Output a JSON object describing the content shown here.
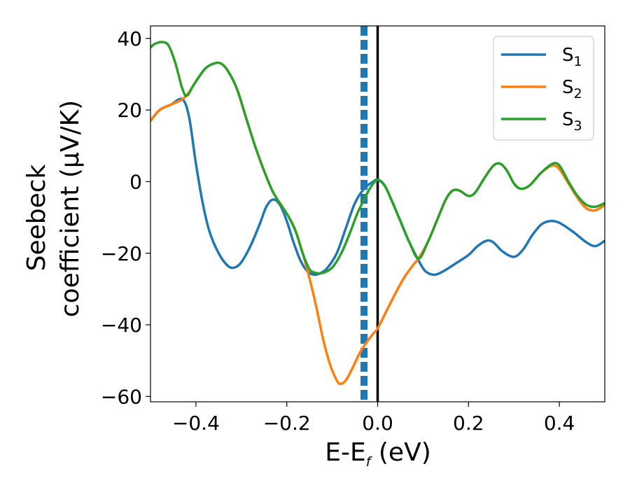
{
  "chart_data": {
    "type": "line",
    "xlabel": {
      "main": "E-E",
      "sub": "f",
      "unit": " (eV)"
    },
    "ylabel": {
      "line1": "Seebeck",
      "line2": "coefficient  (μV/K)"
    },
    "xlim": [
      -0.5,
      0.5
    ],
    "ylim": [
      -61.5,
      43.5
    ],
    "xticks": [
      -0.4,
      -0.2,
      0.0,
      0.2,
      0.4
    ],
    "xtick_labels": [
      "−0.4",
      "−0.2",
      "0.0",
      "0.2",
      "0.4"
    ],
    "yticks": [
      -60,
      -40,
      -20,
      0,
      20,
      40
    ],
    "ytick_labels": [
      "−60",
      "−40",
      "−20",
      "0",
      "20",
      "40"
    ],
    "grid": false,
    "legend_position": "top-right",
    "series": [
      {
        "name": "S",
        "sub": "1",
        "color": "#1f77b4",
        "points": [
          [
            -0.5,
            17
          ],
          [
            -0.48,
            20
          ],
          [
            -0.455,
            21.5
          ],
          [
            -0.43,
            23
          ],
          [
            -0.415,
            18
          ],
          [
            -0.4,
            5
          ],
          [
            -0.385,
            -6
          ],
          [
            -0.37,
            -14
          ],
          [
            -0.35,
            -20
          ],
          [
            -0.33,
            -23.5
          ],
          [
            -0.315,
            -24
          ],
          [
            -0.3,
            -22.5
          ],
          [
            -0.28,
            -18
          ],
          [
            -0.26,
            -12
          ],
          [
            -0.245,
            -7
          ],
          [
            -0.23,
            -5
          ],
          [
            -0.215,
            -6.5
          ],
          [
            -0.2,
            -11
          ],
          [
            -0.185,
            -17
          ],
          [
            -0.17,
            -22
          ],
          [
            -0.155,
            -25
          ],
          [
            -0.14,
            -26
          ],
          [
            -0.125,
            -25.5
          ],
          [
            -0.11,
            -24
          ],
          [
            -0.09,
            -20
          ],
          [
            -0.07,
            -13
          ],
          [
            -0.05,
            -6
          ],
          [
            -0.03,
            -2
          ],
          [
            -0.01,
            0
          ],
          [
            0.0,
            0.5
          ],
          [
            0.015,
            -1
          ],
          [
            0.03,
            -5
          ],
          [
            0.05,
            -11
          ],
          [
            0.07,
            -17
          ],
          [
            0.09,
            -22
          ],
          [
            0.105,
            -25
          ],
          [
            0.125,
            -26
          ],
          [
            0.145,
            -25
          ],
          [
            0.17,
            -23
          ],
          [
            0.2,
            -20.5
          ],
          [
            0.22,
            -18
          ],
          [
            0.24,
            -16.5
          ],
          [
            0.255,
            -17
          ],
          [
            0.275,
            -19.5
          ],
          [
            0.3,
            -21
          ],
          [
            0.32,
            -19
          ],
          [
            0.34,
            -15
          ],
          [
            0.36,
            -12
          ],
          [
            0.38,
            -11
          ],
          [
            0.4,
            -11.5
          ],
          [
            0.43,
            -14
          ],
          [
            0.46,
            -17
          ],
          [
            0.48,
            -18
          ],
          [
            0.5,
            -16.5
          ]
        ]
      },
      {
        "name": "S",
        "sub": "2",
        "color": "#ff7f0e",
        "points": [
          [
            -0.5,
            17
          ],
          [
            -0.48,
            20
          ],
          [
            -0.455,
            21.5
          ],
          [
            -0.43,
            23
          ],
          [
            -0.415,
            25
          ],
          [
            -0.4,
            28
          ],
          [
            -0.38,
            31.5
          ],
          [
            -0.36,
            33
          ],
          [
            -0.345,
            33
          ],
          [
            -0.33,
            31
          ],
          [
            -0.31,
            26
          ],
          [
            -0.29,
            18
          ],
          [
            -0.27,
            10
          ],
          [
            -0.25,
            3
          ],
          [
            -0.23,
            -3
          ],
          [
            -0.21,
            -7
          ],
          [
            -0.195,
            -10
          ],
          [
            -0.18,
            -14
          ],
          [
            -0.165,
            -20
          ],
          [
            -0.15,
            -27
          ],
          [
            -0.135,
            -35
          ],
          [
            -0.12,
            -44
          ],
          [
            -0.105,
            -51
          ],
          [
            -0.09,
            -55.5
          ],
          [
            -0.082,
            -56.5
          ],
          [
            -0.07,
            -55.5
          ],
          [
            -0.055,
            -52
          ],
          [
            -0.04,
            -48
          ],
          [
            -0.025,
            -45
          ],
          [
            -0.01,
            -42.5
          ],
          [
            0.0,
            -41
          ],
          [
            0.02,
            -36
          ],
          [
            0.04,
            -31
          ],
          [
            0.06,
            -26.5
          ],
          [
            0.08,
            -23
          ],
          [
            0.09,
            -21.5
          ],
          [
            0.11,
            -17
          ],
          [
            0.13,
            -11
          ],
          [
            0.15,
            -5
          ],
          [
            0.165,
            -2.5
          ],
          [
            0.18,
            -2.5
          ],
          [
            0.2,
            -4
          ],
          [
            0.215,
            -3
          ],
          [
            0.235,
            1
          ],
          [
            0.255,
            4.5
          ],
          [
            0.27,
            5
          ],
          [
            0.285,
            3
          ],
          [
            0.3,
            -0.5
          ],
          [
            0.315,
            -2
          ],
          [
            0.335,
            -1
          ],
          [
            0.36,
            2.5
          ],
          [
            0.385,
            4.5
          ],
          [
            0.4,
            3.5
          ],
          [
            0.42,
            -0.5
          ],
          [
            0.44,
            -4.5
          ],
          [
            0.46,
            -7.5
          ],
          [
            0.48,
            -8
          ],
          [
            0.5,
            -6.5
          ]
        ]
      },
      {
        "name": "S",
        "sub": "3",
        "color": "#2ca02c",
        "points": [
          [
            -0.5,
            37.5
          ],
          [
            -0.49,
            38.5
          ],
          [
            -0.475,
            39
          ],
          [
            -0.46,
            38
          ],
          [
            -0.445,
            33
          ],
          [
            -0.43,
            26
          ],
          [
            -0.42,
            24
          ],
          [
            -0.405,
            27
          ],
          [
            -0.38,
            31.5
          ],
          [
            -0.36,
            33
          ],
          [
            -0.345,
            33
          ],
          [
            -0.33,
            31
          ],
          [
            -0.31,
            26
          ],
          [
            -0.29,
            18
          ],
          [
            -0.27,
            10
          ],
          [
            -0.25,
            3
          ],
          [
            -0.23,
            -3
          ],
          [
            -0.21,
            -7
          ],
          [
            -0.195,
            -10
          ],
          [
            -0.18,
            -14
          ],
          [
            -0.165,
            -20
          ],
          [
            -0.15,
            -24.5
          ],
          [
            -0.135,
            -25.5
          ],
          [
            -0.12,
            -25.5
          ],
          [
            -0.1,
            -24
          ],
          [
            -0.08,
            -20
          ],
          [
            -0.06,
            -14
          ],
          [
            -0.045,
            -9
          ],
          [
            -0.03,
            -5
          ],
          [
            -0.015,
            -1.5
          ],
          [
            0.0,
            0.5
          ],
          [
            0.015,
            -1
          ],
          [
            0.03,
            -5
          ],
          [
            0.05,
            -11
          ],
          [
            0.07,
            -17
          ],
          [
            0.09,
            -21.5
          ],
          [
            0.11,
            -17
          ],
          [
            0.13,
            -11
          ],
          [
            0.15,
            -5
          ],
          [
            0.165,
            -2.5
          ],
          [
            0.18,
            -2.5
          ],
          [
            0.2,
            -4
          ],
          [
            0.215,
            -3
          ],
          [
            0.235,
            1
          ],
          [
            0.255,
            4.5
          ],
          [
            0.27,
            5
          ],
          [
            0.285,
            3
          ],
          [
            0.3,
            -0.5
          ],
          [
            0.315,
            -2
          ],
          [
            0.335,
            -1
          ],
          [
            0.36,
            2.5
          ],
          [
            0.385,
            5
          ],
          [
            0.4,
            4.5
          ],
          [
            0.42,
            0
          ],
          [
            0.44,
            -4
          ],
          [
            0.46,
            -6.5
          ],
          [
            0.48,
            -7
          ],
          [
            0.5,
            -6
          ]
        ]
      }
    ],
    "vlines": [
      {
        "x": -0.03,
        "style": "dashed",
        "color": "#1f77b4"
      },
      {
        "x": 0.0,
        "style": "solid",
        "color": "#000000"
      }
    ]
  }
}
